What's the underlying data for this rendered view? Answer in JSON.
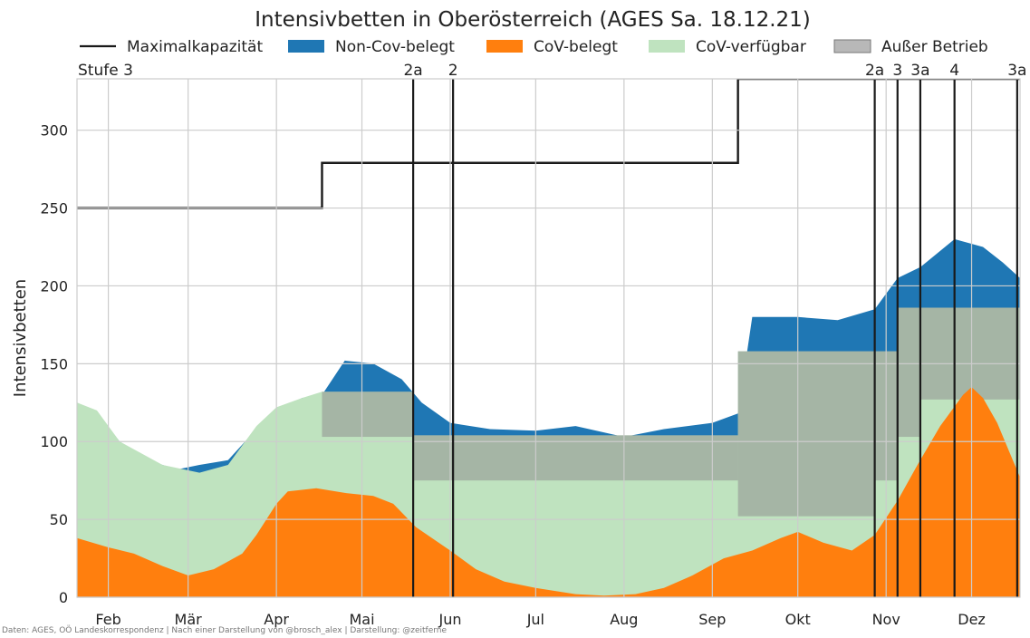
{
  "chart_data": {
    "type": "area",
    "title": "Intensivbetten in Oberösterreich (AGES Sa. 18.12.21)",
    "ylabel": "Intensivbetten",
    "xlabel": "",
    "ylim": [
      0,
      333
    ],
    "x_start": "2021-01-21",
    "x_end": "2021-12-18",
    "yticks": [
      0,
      50,
      100,
      150,
      200,
      250,
      300
    ],
    "month_ticks": [
      {
        "label": "Feb",
        "date": "2021-02-01"
      },
      {
        "label": "Mär",
        "date": "2021-03-01"
      },
      {
        "label": "Apr",
        "date": "2021-04-01"
      },
      {
        "label": "Mai",
        "date": "2021-05-01"
      },
      {
        "label": "Jun",
        "date": "2021-06-01"
      },
      {
        "label": "Jul",
        "date": "2021-07-01"
      },
      {
        "label": "Aug",
        "date": "2021-08-01"
      },
      {
        "label": "Sep",
        "date": "2021-09-01"
      },
      {
        "label": "Okt",
        "date": "2021-10-01"
      },
      {
        "label": "Nov",
        "date": "2021-11-01"
      },
      {
        "label": "Dez",
        "date": "2021-12-01"
      }
    ],
    "grid": true,
    "legend_position": "top",
    "legend": [
      {
        "label": "Maximalkapazität",
        "kind": "line",
        "color": "#1a1a1a"
      },
      {
        "label": "Non-Cov-belegt",
        "kind": "patch",
        "color": "#1f77b4"
      },
      {
        "label": "CoV-belegt",
        "kind": "patch",
        "color": "#ff7f0e"
      },
      {
        "label": "CoV-verfügbar",
        "kind": "patch",
        "color": "#bfe3bf"
      },
      {
        "label": "Außer Betrieb",
        "kind": "patch",
        "color": "#b8b8b8"
      }
    ],
    "stages": [
      {
        "label": "Stufe 3",
        "date": "2021-01-21",
        "line": false
      },
      {
        "label": "2a",
        "date": "2021-05-19",
        "line": true
      },
      {
        "label": "2",
        "date": "2021-06-02",
        "line": true
      },
      {
        "label": "2a",
        "date": "2021-10-28",
        "line": true
      },
      {
        "label": "3",
        "date": "2021-11-05",
        "line": true
      },
      {
        "label": "3a",
        "date": "2021-11-13",
        "line": true
      },
      {
        "label": "4",
        "date": "2021-11-25",
        "line": true
      },
      {
        "label": "3a",
        "date": "2021-12-17",
        "line": true
      }
    ],
    "series": [
      {
        "name": "Maximalkapazität",
        "kind": "step",
        "color": "#1a1a1a",
        "points": [
          {
            "date": "2021-01-21",
            "value": 250
          },
          {
            "date": "2021-04-17",
            "value": 279
          },
          {
            "date": "2021-09-10",
            "value": 333
          },
          {
            "date": "2021-12-18",
            "value": 333
          }
        ]
      },
      {
        "name": "Außer Betrieb",
        "kind": "bands",
        "color": "#b8b8b8",
        "bands": [
          {
            "from": "2021-04-17",
            "to": "2021-05-19",
            "low": 103,
            "high": 132
          },
          {
            "from": "2021-05-19",
            "to": "2021-06-02",
            "low": 75,
            "high": 104
          },
          {
            "from": "2021-06-02",
            "to": "2021-09-10",
            "low": 75,
            "high": 104
          },
          {
            "from": "2021-09-10",
            "to": "2021-10-28",
            "low": 52,
            "high": 158
          },
          {
            "from": "2021-10-28",
            "to": "2021-11-05",
            "low": 75,
            "high": 158
          },
          {
            "from": "2021-11-05",
            "to": "2021-11-13",
            "low": 103,
            "high": 186
          },
          {
            "from": "2021-11-13",
            "to": "2021-11-25",
            "low": 127,
            "high": 186
          },
          {
            "from": "2021-11-25",
            "to": "2021-12-17",
            "low": 127,
            "high": 186
          },
          {
            "from": "2021-12-17",
            "to": "2021-12-18",
            "low": 127,
            "high": 186
          }
        ]
      },
      {
        "name": "Non-Cov-belegt",
        "kind": "upper_boundary",
        "color": "#1f77b4",
        "points": [
          {
            "date": "2021-01-21",
            "value": 125
          },
          {
            "date": "2021-01-28",
            "value": 118
          },
          {
            "date": "2021-02-05",
            "value": 100
          },
          {
            "date": "2021-02-15",
            "value": 88
          },
          {
            "date": "2021-02-25",
            "value": 82
          },
          {
            "date": "2021-03-05",
            "value": 85
          },
          {
            "date": "2021-03-15",
            "value": 88
          },
          {
            "date": "2021-03-25",
            "value": 108
          },
          {
            "date": "2021-04-01",
            "value": 120
          },
          {
            "date": "2021-04-10",
            "value": 128
          },
          {
            "date": "2021-04-17",
            "value": 130
          },
          {
            "date": "2021-04-25",
            "value": 152
          },
          {
            "date": "2021-05-05",
            "value": 150
          },
          {
            "date": "2021-05-15",
            "value": 140
          },
          {
            "date": "2021-05-22",
            "value": 125
          },
          {
            "date": "2021-06-01",
            "value": 112
          },
          {
            "date": "2021-06-15",
            "value": 108
          },
          {
            "date": "2021-07-01",
            "value": 107
          },
          {
            "date": "2021-07-15",
            "value": 110
          },
          {
            "date": "2021-08-01",
            "value": 103
          },
          {
            "date": "2021-08-15",
            "value": 108
          },
          {
            "date": "2021-09-01",
            "value": 112
          },
          {
            "date": "2021-09-10",
            "value": 118
          },
          {
            "date": "2021-09-15",
            "value": 180
          },
          {
            "date": "2021-10-01",
            "value": 180
          },
          {
            "date": "2021-10-15",
            "value": 178
          },
          {
            "date": "2021-10-28",
            "value": 185
          },
          {
            "date": "2021-11-05",
            "value": 205
          },
          {
            "date": "2021-11-13",
            "value": 212
          },
          {
            "date": "2021-11-25",
            "value": 230
          },
          {
            "date": "2021-12-05",
            "value": 225
          },
          {
            "date": "2021-12-12",
            "value": 215
          },
          {
            "date": "2021-12-18",
            "value": 205
          }
        ]
      },
      {
        "name": "CoV-verfügbar",
        "kind": "upper_boundary",
        "color": "#bfe3bf",
        "points": [
          {
            "date": "2021-01-21",
            "value": 125
          },
          {
            "date": "2021-01-28",
            "value": 120
          },
          {
            "date": "2021-02-05",
            "value": 100
          },
          {
            "date": "2021-02-20",
            "value": 85
          },
          {
            "date": "2021-03-05",
            "value": 80
          },
          {
            "date": "2021-03-15",
            "value": 85
          },
          {
            "date": "2021-03-25",
            "value": 110
          },
          {
            "date": "2021-04-01",
            "value": 122
          },
          {
            "date": "2021-04-10",
            "value": 128
          },
          {
            "date": "2021-04-17",
            "value": 132
          },
          {
            "date": "2021-05-19",
            "value": 132
          },
          {
            "date": "2021-05-19",
            "value": 104
          },
          {
            "date": "2021-06-02",
            "value": 104
          },
          {
            "date": "2021-09-10",
            "value": 104
          },
          {
            "date": "2021-09-10",
            "value": 158
          },
          {
            "date": "2021-10-28",
            "value": 158
          },
          {
            "date": "2021-10-28",
            "value": 158
          },
          {
            "date": "2021-11-05",
            "value": 158
          },
          {
            "date": "2021-11-05",
            "value": 186
          },
          {
            "date": "2021-12-18",
            "value": 186
          }
        ]
      },
      {
        "name": "CoV-belegt",
        "kind": "area",
        "color": "#ff7f0e",
        "points": [
          {
            "date": "2021-01-21",
            "value": 38
          },
          {
            "date": "2021-02-01",
            "value": 32
          },
          {
            "date": "2021-02-10",
            "value": 28
          },
          {
            "date": "2021-02-20",
            "value": 20
          },
          {
            "date": "2021-03-01",
            "value": 14
          },
          {
            "date": "2021-03-10",
            "value": 18
          },
          {
            "date": "2021-03-20",
            "value": 28
          },
          {
            "date": "2021-03-25",
            "value": 40
          },
          {
            "date": "2021-04-01",
            "value": 60
          },
          {
            "date": "2021-04-05",
            "value": 68
          },
          {
            "date": "2021-04-15",
            "value": 70
          },
          {
            "date": "2021-04-25",
            "value": 67
          },
          {
            "date": "2021-05-05",
            "value": 65
          },
          {
            "date": "2021-05-12",
            "value": 60
          },
          {
            "date": "2021-05-20",
            "value": 45
          },
          {
            "date": "2021-06-01",
            "value": 30
          },
          {
            "date": "2021-06-10",
            "value": 18
          },
          {
            "date": "2021-06-20",
            "value": 10
          },
          {
            "date": "2021-07-01",
            "value": 6
          },
          {
            "date": "2021-07-15",
            "value": 2
          },
          {
            "date": "2021-07-25",
            "value": 1
          },
          {
            "date": "2021-08-05",
            "value": 2
          },
          {
            "date": "2021-08-15",
            "value": 6
          },
          {
            "date": "2021-08-25",
            "value": 14
          },
          {
            "date": "2021-09-05",
            "value": 25
          },
          {
            "date": "2021-09-15",
            "value": 30
          },
          {
            "date": "2021-09-25",
            "value": 38
          },
          {
            "date": "2021-10-01",
            "value": 42
          },
          {
            "date": "2021-10-10",
            "value": 35
          },
          {
            "date": "2021-10-20",
            "value": 30
          },
          {
            "date": "2021-10-28",
            "value": 40
          },
          {
            "date": "2021-11-05",
            "value": 62
          },
          {
            "date": "2021-11-12",
            "value": 85
          },
          {
            "date": "2021-11-20",
            "value": 110
          },
          {
            "date": "2021-11-28",
            "value": 130
          },
          {
            "date": "2021-12-01",
            "value": 135
          },
          {
            "date": "2021-12-05",
            "value": 128
          },
          {
            "date": "2021-12-10",
            "value": 112
          },
          {
            "date": "2021-12-15",
            "value": 90
          },
          {
            "date": "2021-12-18",
            "value": 77
          }
        ]
      }
    ]
  },
  "footer": {
    "credit": "Daten: AGES, OÖ Landeskorrespondenz | Nach einer Darstellung von @brosch_alex | Darstellung: @zeitferne"
  }
}
